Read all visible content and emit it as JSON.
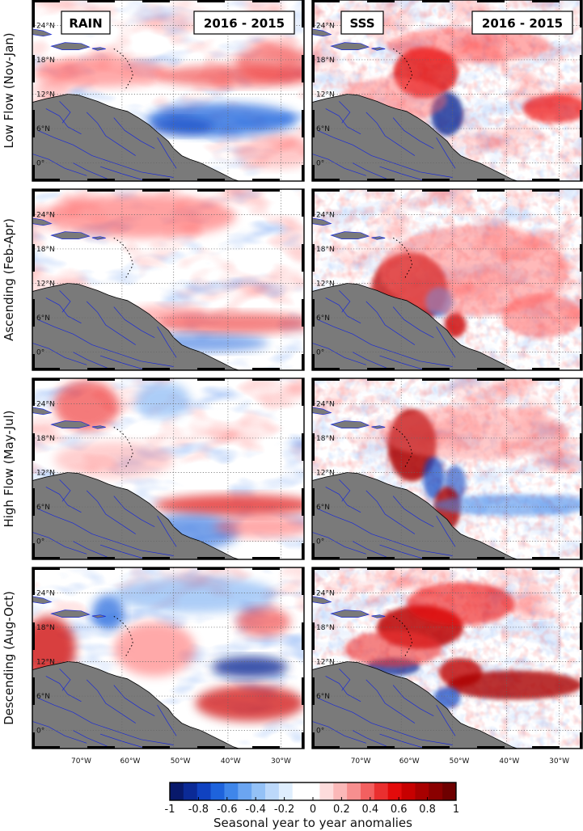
{
  "figure": {
    "row_labels": [
      "Low Flow (Nov-Jan)",
      "Ascending (Feb-Apr)",
      "High Flow (May-Jul)",
      "Descending (Aug-Oct)"
    ],
    "column_titles": [
      "RAIN",
      "SSS"
    ],
    "difference_label": "2016 - 2015",
    "lat_ticks": [
      "24°N",
      "18°N",
      "12°N",
      "6°N",
      "0°"
    ],
    "lon_ticks": [
      "70°W",
      "60°W",
      "50°W",
      "40°W",
      "30°W"
    ]
  },
  "colorbar": {
    "title": "Seasonal year to year anomalies",
    "tick_labels": [
      "-1",
      "-0.8",
      "-0.6",
      "-0.4",
      "-0.2",
      "0",
      "0.2",
      "0.4",
      "0.6",
      "0.8",
      "1"
    ],
    "range": [
      -1,
      1
    ],
    "colors": [
      "#08196b",
      "#0b2a96",
      "#1042c0",
      "#1e63dc",
      "#3f86ea",
      "#6ba5f1",
      "#94c1f6",
      "#bcd8fa",
      "#dfeefd",
      "#ffffff",
      "#ffffff",
      "#fddcdc",
      "#fbb8b8",
      "#f78f8f",
      "#f26060",
      "#ea2f2f",
      "#e30b0b",
      "#c70000",
      "#a80000",
      "#8a0000",
      "#6e0000"
    ]
  },
  "map_style": {
    "land_color": "#7a7a7a",
    "river_color": "#1a2ad6",
    "coast_color": "#000000"
  }
}
